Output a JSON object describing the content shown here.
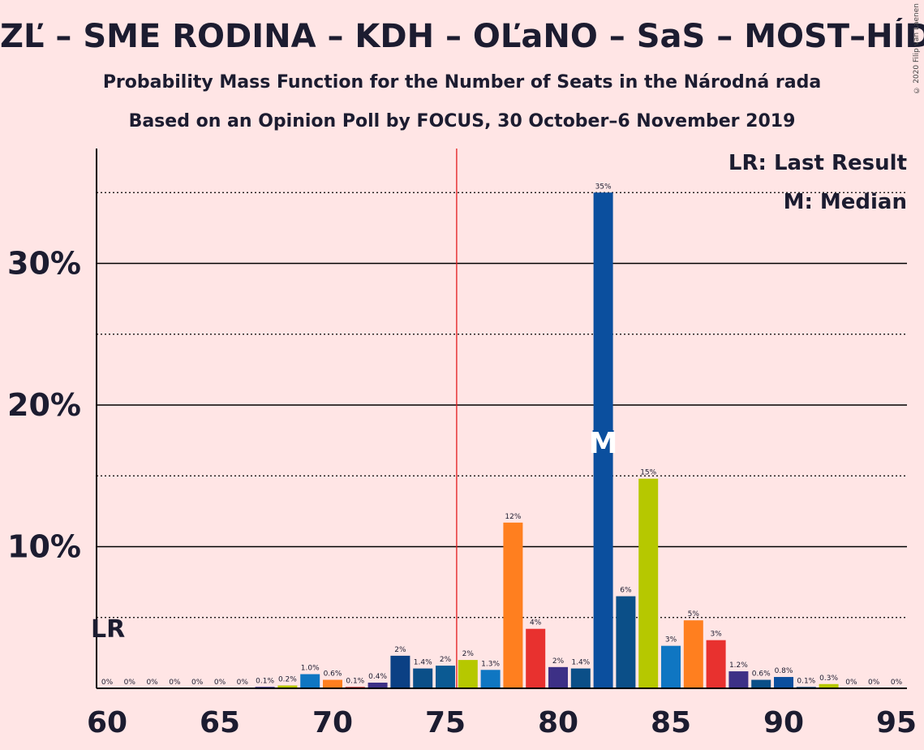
{
  "title": "ZĽ – SME RODINA – KDH – OĽaNO – SaS – MOST–HÍD",
  "subtitle1": "Probability Mass Function for the Number of Seats in the Národná rada",
  "subtitle2": "Based on an Opinion Poll by FOCUS, 30 October–6 November 2019",
  "copyright": "© 2020 Filip van Laenen",
  "legend": {
    "lr": "LR: Last Result",
    "median": "M: Median"
  },
  "markers": {
    "lr_label": "LR",
    "median_label": "M",
    "majority_seats": 76,
    "last_result_seats": 60,
    "median_seats": 82
  },
  "colors": {
    "background": "#ffe5e5",
    "majority_line": "#e31a1c",
    "text": "#1c1c30"
  },
  "chart_data": {
    "type": "bar",
    "xlim": [
      60,
      95
    ],
    "ylim": [
      0,
      38
    ],
    "x_ticks": [
      60,
      65,
      70,
      75,
      80,
      85,
      90,
      95
    ],
    "y_ticks": [
      {
        "value": 10,
        "label": "10%"
      },
      {
        "value": 20,
        "label": "20%"
      },
      {
        "value": 30,
        "label": "30%"
      }
    ],
    "dotted_gridlines": [
      5,
      15,
      25,
      35
    ],
    "bars": [
      {
        "x": 60,
        "value": 0,
        "label": "0%",
        "color": "#3a3a8c"
      },
      {
        "x": 61,
        "value": 0,
        "label": "0%",
        "color": "#3a3a8c"
      },
      {
        "x": 62,
        "value": 0,
        "label": "0%",
        "color": "#3a3a8c"
      },
      {
        "x": 63,
        "value": 0,
        "label": "0%",
        "color": "#3a3a8c"
      },
      {
        "x": 64,
        "value": 0,
        "label": "0%",
        "color": "#3a3a8c"
      },
      {
        "x": 65,
        "value": 0,
        "label": "0%",
        "color": "#3a3a8c"
      },
      {
        "x": 66,
        "value": 0,
        "label": "0%",
        "color": "#3a3a8c"
      },
      {
        "x": 67,
        "value": 0.1,
        "label": "0.1%",
        "color": "#2b2f8f"
      },
      {
        "x": 68,
        "value": 0.2,
        "label": "0.2%",
        "color": "#b6c800"
      },
      {
        "x": 69,
        "value": 1.0,
        "label": "1.0%",
        "color": "#0f76c2"
      },
      {
        "x": 70,
        "value": 0.6,
        "label": "0.6%",
        "color": "#ff7f1f"
      },
      {
        "x": 71,
        "value": 0.1,
        "label": "0.1%",
        "color": "#e8312f"
      },
      {
        "x": 72,
        "value": 0.4,
        "label": "0.4%",
        "color": "#3d3086"
      },
      {
        "x": 73,
        "value": 2.3,
        "label": "2%",
        "color": "#0b4084"
      },
      {
        "x": 74,
        "value": 1.4,
        "label": "1.4%",
        "color": "#0b4f88"
      },
      {
        "x": 75,
        "value": 1.6,
        "label": "2%",
        "color": "#0b5a93"
      },
      {
        "x": 76,
        "value": 2.0,
        "label": "2%",
        "color": "#b6c800"
      },
      {
        "x": 77,
        "value": 1.3,
        "label": "1.3%",
        "color": "#0f76c2"
      },
      {
        "x": 78,
        "value": 11.7,
        "label": "12%",
        "color": "#ff7f1f"
      },
      {
        "x": 79,
        "value": 4.2,
        "label": "4%",
        "color": "#e8312f"
      },
      {
        "x": 80,
        "value": 1.5,
        "label": "2%",
        "color": "#3d3086"
      },
      {
        "x": 81,
        "value": 1.4,
        "label": "1.4%",
        "color": "#0b4f88"
      },
      {
        "x": 82,
        "value": 35.0,
        "label": "35%",
        "color": "#0b4f9e"
      },
      {
        "x": 83,
        "value": 6.5,
        "label": "6%",
        "color": "#0b4f88"
      },
      {
        "x": 84,
        "value": 14.8,
        "label": "15%",
        "color": "#b6c800"
      },
      {
        "x": 85,
        "value": 3.0,
        "label": "3%",
        "color": "#0f76c2"
      },
      {
        "x": 86,
        "value": 4.8,
        "label": "5%",
        "color": "#ff7f1f"
      },
      {
        "x": 87,
        "value": 3.4,
        "label": "3%",
        "color": "#e8312f"
      },
      {
        "x": 88,
        "value": 1.2,
        "label": "1.2%",
        "color": "#3d3086"
      },
      {
        "x": 89,
        "value": 0.6,
        "label": "0.6%",
        "color": "#0b4f88"
      },
      {
        "x": 90,
        "value": 0.8,
        "label": "0.8%",
        "color": "#0b4f9e"
      },
      {
        "x": 91,
        "value": 0.1,
        "label": "0.1%",
        "color": "#0b4f88"
      },
      {
        "x": 92,
        "value": 0.3,
        "label": "0.3%",
        "color": "#b6c800"
      },
      {
        "x": 93,
        "value": 0,
        "label": "0%",
        "color": "#0f76c2"
      },
      {
        "x": 94,
        "value": 0,
        "label": "0%",
        "color": "#ff7f1f"
      },
      {
        "x": 95,
        "value": 0,
        "label": "0%",
        "color": "#e8312f"
      }
    ]
  }
}
